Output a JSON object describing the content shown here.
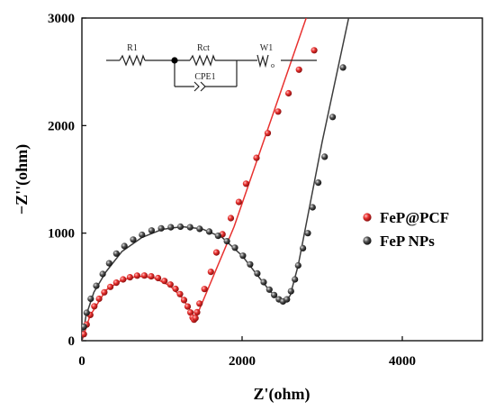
{
  "chart_data": {
    "type": "scatter",
    "title": "",
    "xlabel": "Z'(ohm)",
    "ylabel": "−Z''(ohm)",
    "xlim": [
      0,
      5000
    ],
    "ylim": [
      0,
      3000
    ],
    "x_ticks": [
      0,
      2000,
      4000
    ],
    "y_ticks": [
      0,
      1000,
      2000,
      3000
    ],
    "x_tick_labels": [
      "0",
      "2000",
      "4000"
    ],
    "y_tick_labels": [
      "0",
      "1000",
      "2000",
      "3000"
    ],
    "grid": false,
    "legend_position": "right",
    "series": [
      {
        "name": "FeP@PCF",
        "color": "#e8312f",
        "points": [
          [
            25,
            60
          ],
          [
            60,
            150
          ],
          [
            105,
            240
          ],
          [
            155,
            320
          ],
          [
            215,
            390
          ],
          [
            280,
            450
          ],
          [
            355,
            500
          ],
          [
            430,
            540
          ],
          [
            515,
            570
          ],
          [
            600,
            590
          ],
          [
            690,
            605
          ],
          [
            780,
            606
          ],
          [
            865,
            598
          ],
          [
            950,
            582
          ],
          [
            1030,
            556
          ],
          [
            1105,
            522
          ],
          [
            1170,
            482
          ],
          [
            1225,
            433
          ],
          [
            1275,
            378
          ],
          [
            1320,
            318
          ],
          [
            1355,
            262
          ],
          [
            1382,
            215
          ],
          [
            1400,
            195
          ],
          [
            1418,
            210
          ],
          [
            1438,
            265
          ],
          [
            1468,
            345
          ],
          [
            1530,
            480
          ],
          [
            1610,
            640
          ],
          [
            1680,
            820
          ],
          [
            1755,
            990
          ],
          [
            1860,
            1140
          ],
          [
            1960,
            1290
          ],
          [
            2050,
            1460
          ],
          [
            2180,
            1700
          ],
          [
            2320,
            1930
          ],
          [
            2450,
            2130
          ],
          [
            2580,
            2300
          ],
          [
            2710,
            2520
          ],
          [
            2900,
            2700
          ]
        ],
        "fit": [
          [
            0,
            0
          ],
          [
            100,
            230
          ],
          [
            300,
            470
          ],
          [
            500,
            565
          ],
          [
            700,
            600
          ],
          [
            900,
            585
          ],
          [
            1100,
            510
          ],
          [
            1250,
            400
          ],
          [
            1350,
            285
          ],
          [
            1400,
            220
          ],
          [
            1420,
            205
          ],
          [
            1450,
            260
          ],
          [
            1900,
            1060
          ],
          [
            2800,
            3000
          ]
        ]
      },
      {
        "name": "FeP NPs",
        "color": "#3d3d3d",
        "points": [
          [
            25,
            130
          ],
          [
            60,
            260
          ],
          [
            110,
            390
          ],
          [
            180,
            510
          ],
          [
            260,
            620
          ],
          [
            340,
            720
          ],
          [
            430,
            810
          ],
          [
            530,
            880
          ],
          [
            640,
            940
          ],
          [
            750,
            985
          ],
          [
            870,
            1025
          ],
          [
            990,
            1045
          ],
          [
            1110,
            1055
          ],
          [
            1230,
            1060
          ],
          [
            1350,
            1055
          ],
          [
            1470,
            1040
          ],
          [
            1590,
            1015
          ],
          [
            1700,
            975
          ],
          [
            1810,
            925
          ],
          [
            1910,
            865
          ],
          [
            2010,
            790
          ],
          [
            2100,
            710
          ],
          [
            2190,
            625
          ],
          [
            2270,
            545
          ],
          [
            2340,
            475
          ],
          [
            2400,
            425
          ],
          [
            2460,
            385
          ],
          [
            2510,
            365
          ],
          [
            2560,
            385
          ],
          [
            2610,
            460
          ],
          [
            2660,
            570
          ],
          [
            2700,
            700
          ],
          [
            2760,
            860
          ],
          [
            2820,
            1000
          ],
          [
            2880,
            1240
          ],
          [
            2950,
            1470
          ],
          [
            3030,
            1710
          ],
          [
            3130,
            2080
          ],
          [
            3260,
            2540
          ]
        ],
        "fit": [
          [
            0,
            0
          ],
          [
            50,
            230
          ],
          [
            150,
            450
          ],
          [
            300,
            640
          ],
          [
            500,
            830
          ],
          [
            750,
            960
          ],
          [
            1000,
            1035
          ],
          [
            1250,
            1060
          ],
          [
            1500,
            1040
          ],
          [
            1750,
            960
          ],
          [
            2000,
            790
          ],
          [
            2200,
            600
          ],
          [
            2350,
            460
          ],
          [
            2450,
            390
          ],
          [
            2530,
            360
          ],
          [
            2600,
            420
          ],
          [
            2700,
            700
          ],
          [
            3000,
            1850
          ],
          [
            3330,
            3000
          ]
        ]
      }
    ],
    "inset_circuit": {
      "labels": [
        "R1",
        "Rct",
        "W1",
        "CPE1"
      ],
      "subscript": "o"
    }
  }
}
